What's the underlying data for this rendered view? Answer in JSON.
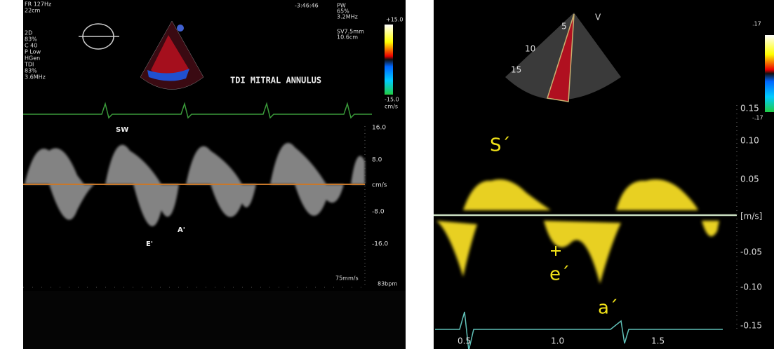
{
  "left_panel": {
    "top_left": [
      "FR 127Hz",
      "22cm"
    ],
    "time": "-3:46:46",
    "settings_2d": [
      "2D",
      "83%",
      "C 40",
      "P Low",
      "HGen",
      "TDI",
      "83%",
      "3.6MHz"
    ],
    "settings_pw": [
      "PW",
      "65%",
      "3.2MHz",
      "SV7.5mm",
      "10.6cm"
    ],
    "color_bar": [
      "+15.0",
      "-15.0",
      "cm/s"
    ],
    "title": "TDI MITRAL ANNULUS",
    "scale": [
      "16.0",
      "8.0",
      "cm/s",
      "-8.0",
      "-16.0"
    ],
    "wave_labels": [
      "SW",
      "E'",
      "A'"
    ],
    "sweep": "75mm/s",
    "heart_rate": "83bpm"
  },
  "right_panel": {
    "depth_labels": [
      "V",
      "5",
      "10",
      "15"
    ],
    "color_bar": [
      ".17",
      "-.17"
    ],
    "wave_labels": [
      "S´",
      "e´",
      "a´"
    ],
    "y_axis": [
      "0.15",
      "0.10",
      "0.05",
      "[m/s]",
      "-0.05",
      "-0.10",
      "-0.15"
    ],
    "x_axis": [
      "0.5",
      "1.0",
      "1.5"
    ]
  }
}
